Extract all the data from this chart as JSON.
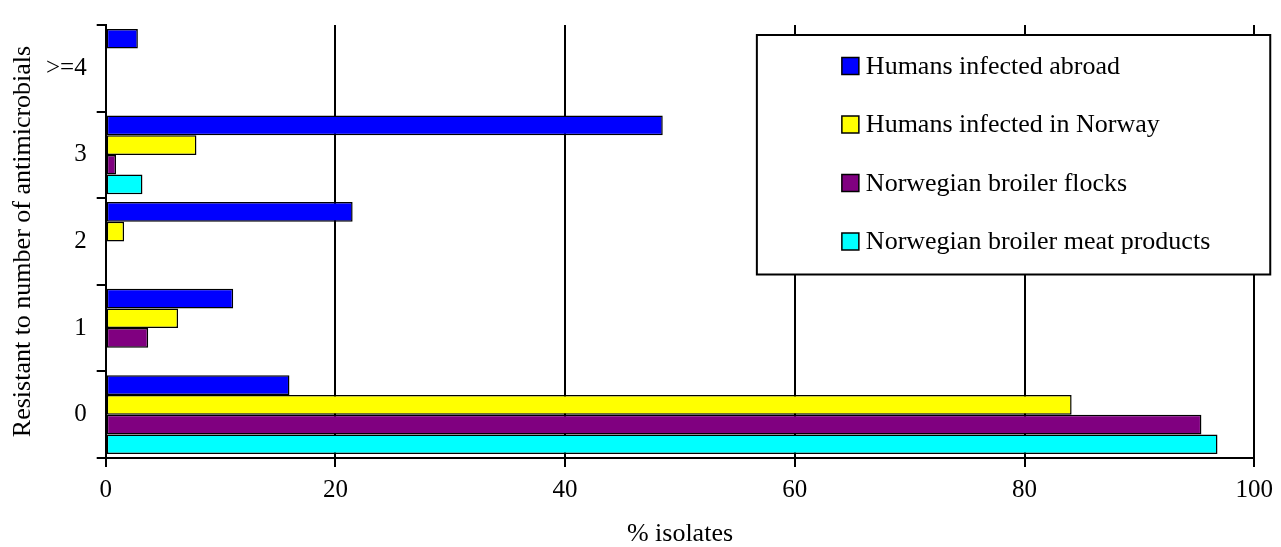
{
  "chart_data": {
    "type": "bar",
    "orientation": "horizontal",
    "xlabel": "% isolates",
    "ylabel": "Resistant to number of antimicrobials",
    "categories": [
      ">=4",
      "3",
      "2",
      "1",
      "0"
    ],
    "series": [
      {
        "name": "Humans infected abroad",
        "color": "#0000ff",
        "values": [
          2.8,
          48.5,
          21.5,
          11.1,
          16.0
        ]
      },
      {
        "name": "Humans infected in Norway",
        "color": "#ffff00",
        "values": [
          null,
          7.9,
          1.6,
          6.3,
          84.1
        ]
      },
      {
        "name": "Norwegian broiler flocks",
        "color": "#800080",
        "values": [
          null,
          0.9,
          null,
          3.7,
          95.4
        ]
      },
      {
        "name": "Norwegian broiler meat products",
        "color": "#00ffff",
        "values": [
          null,
          3.2,
          null,
          null,
          96.8
        ]
      }
    ],
    "xlim": [
      0,
      100
    ],
    "xticks": [
      0,
      20,
      40,
      60,
      80,
      100
    ],
    "grid": "x",
    "legend": "top right"
  }
}
